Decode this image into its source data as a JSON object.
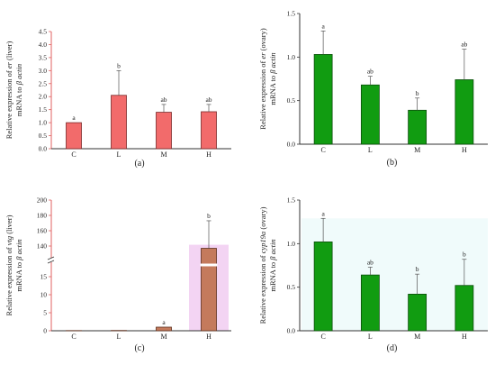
{
  "chart_data": [
    {
      "panel_label": "(a)",
      "type": "bar",
      "categories": [
        "C",
        "L",
        "M",
        "H"
      ],
      "values": [
        1.0,
        2.05,
        1.4,
        1.42
      ],
      "errors": [
        0.0,
        0.95,
        0.3,
        0.28
      ],
      "letters": [
        "a",
        "b",
        "ab",
        "ab"
      ],
      "ylabel_line1_pre": "Relative expression of ",
      "ylabel_line1_italic": "er",
      "ylabel_line1_post": " (liver)",
      "ylabel_line2_pre": "mRNA to ",
      "ylabel_line2_italic": "β actin",
      "ylim": [
        0,
        4.5
      ],
      "yticks": [
        "0.0",
        "0.5",
        "1.0",
        "1.5",
        "2.0",
        "2.5",
        "3.0",
        "3.5",
        "4.0",
        "4.5"
      ],
      "colors": {
        "bar": "#f26b6b",
        "bar_edge": "#7a2a2a",
        "axis": "#e06060"
      }
    },
    {
      "panel_label": "(b)",
      "type": "bar",
      "categories": [
        "C",
        "L",
        "M",
        "H"
      ],
      "values": [
        1.03,
        0.68,
        0.39,
        0.74
      ],
      "errors": [
        0.27,
        0.1,
        0.14,
        0.35
      ],
      "letters": [
        "a",
        "ab",
        "b",
        "ab"
      ],
      "ylabel_line1_pre": "Relative expression of ",
      "ylabel_line1_italic": "er",
      "ylabel_line1_post": " (ovary)",
      "ylabel_line2_pre": "mRNA to ",
      "ylabel_line2_italic": "β actin",
      "ylim": [
        0,
        1.5
      ],
      "yticks": [
        "0.0",
        "0.5",
        "1.0",
        "1.5"
      ],
      "colors": {
        "bar": "#119c11",
        "bar_edge": "#0b4d0b",
        "axis": "#333333"
      }
    },
    {
      "panel_label": "(c)",
      "type": "bar",
      "categories": [
        "C",
        "L",
        "M",
        "H"
      ],
      "values": [
        0.05,
        0.08,
        1.0,
        137
      ],
      "errors": [
        0,
        0,
        0,
        36
      ],
      "letters": [
        "",
        "",
        "a",
        "b"
      ],
      "ylabel_line1_pre": "Relative expression of ",
      "ylabel_line1_italic": "vtg",
      "ylabel_line1_post": " (liver)",
      "ylabel_line2_pre": "mRNA to ",
      "ylabel_line2_italic": "β actin",
      "ylim_lower": [
        0,
        20
      ],
      "ylim_upper": [
        120,
        200
      ],
      "yticks_lower": [
        "0",
        "5",
        "10",
        "15"
      ],
      "yticks_upper": [
        "140",
        "160",
        "180",
        "200"
      ],
      "colors": {
        "bar": "#c47a5c",
        "bar_edge": "#5a2e1c",
        "axis": "#e06060",
        "highlight": "#f3d4f3"
      }
    },
    {
      "panel_label": "(d)",
      "type": "bar",
      "categories": [
        "C",
        "L",
        "M",
        "H"
      ],
      "values": [
        1.02,
        0.64,
        0.42,
        0.52
      ],
      "errors": [
        0.27,
        0.09,
        0.23,
        0.3
      ],
      "letters": [
        "a",
        "ab",
        "b",
        "b"
      ],
      "ylabel_line1_pre": "Relative expression of ",
      "ylabel_line1_italic": "cyp19a",
      "ylabel_line1_post": " (ovary)",
      "ylabel_line2_pre": "mRNA to ",
      "ylabel_line2_italic": "β actin",
      "ylim": [
        0,
        1.5
      ],
      "yticks": [
        "0.0",
        "0.5",
        "1.0",
        "1.5"
      ],
      "colors": {
        "bar": "#119c11",
        "bar_edge": "#0b4d0b",
        "axis": "#333333",
        "highlight": "#e3f7f7"
      }
    }
  ]
}
